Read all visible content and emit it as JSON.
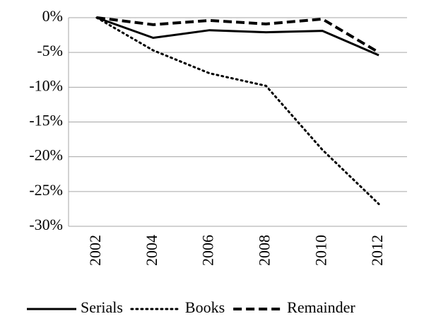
{
  "chart_data": {
    "type": "line",
    "categories": [
      "2002",
      "2004",
      "2006",
      "2008",
      "2010",
      "2012"
    ],
    "series": [
      {
        "name": "Serials",
        "color": "#000000",
        "dash": "solid",
        "values": [
          0,
          -2.9,
          -1.8,
          -2.1,
          -1.9,
          -5.4
        ]
      },
      {
        "name": "Books",
        "color": "#000000",
        "dash": "dotted",
        "values": [
          0,
          -4.7,
          -8.0,
          -9.8,
          -19.0,
          -26.8
        ]
      },
      {
        "name": "Remainder",
        "color": "#000000",
        "dash": "dashed",
        "values": [
          0,
          -1.0,
          -0.4,
          -0.9,
          -0.2,
          -5.0
        ]
      }
    ],
    "ylim": [
      -30,
      0
    ],
    "yticks": [
      {
        "value": 0,
        "label": "0%"
      },
      {
        "value": -5,
        "label": "-5%"
      },
      {
        "value": -10,
        "label": "-10%"
      },
      {
        "value": -15,
        "label": "-15%"
      },
      {
        "value": -20,
        "label": "-20%"
      },
      {
        "value": -25,
        "label": "-25%"
      },
      {
        "value": -30,
        "label": "-30%"
      }
    ],
    "grid": true,
    "legend": "bottom"
  }
}
